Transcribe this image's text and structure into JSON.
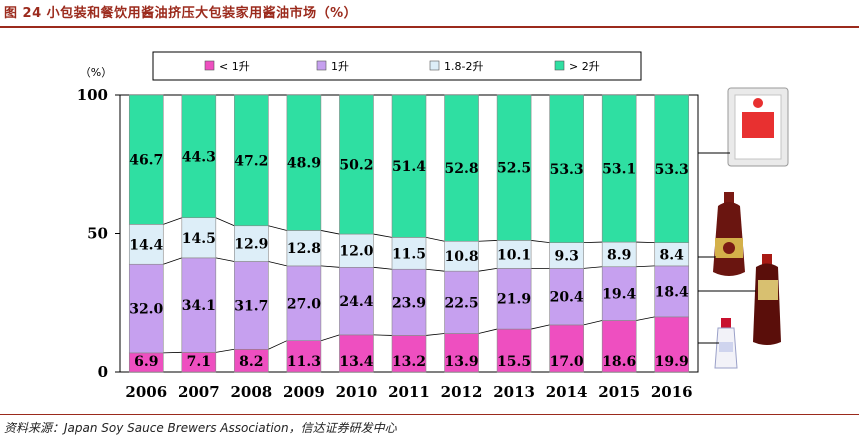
{
  "figure": {
    "title": "图 24 小包装和餐饮用酱油挤压大包装家用酱油市场（%）",
    "source": "资料来源：Japan Soy Sauce Brewers Association，信达证券研发中心"
  },
  "chart_data": {
    "type": "bar",
    "stacked": true,
    "ylabel": "（%）",
    "ylim": [
      0,
      100
    ],
    "yticks": [
      0,
      50,
      100
    ],
    "legend_position": "top",
    "grid": false,
    "categories": [
      "2006",
      "2007",
      "2008",
      "2009",
      "2010",
      "2011",
      "2012",
      "2013",
      "2014",
      "2015",
      "2016"
    ],
    "series": [
      {
        "name": "< 1升",
        "color": "#ee4fc0",
        "values": [
          6.9,
          7.1,
          8.2,
          11.3,
          13.4,
          13.2,
          13.9,
          15.5,
          17.0,
          18.6,
          19.9
        ],
        "labels": [
          "6.9",
          "7.1",
          "8.2",
          "11.3",
          "13.4",
          "13.2",
          "13.9",
          "15.5",
          "17.0",
          "18.6",
          "19.9"
        ]
      },
      {
        "name": "1升",
        "color": "#c6a0ef",
        "values": [
          32.0,
          34.1,
          31.7,
          27.0,
          24.4,
          23.9,
          22.5,
          21.9,
          20.4,
          19.4,
          18.4
        ],
        "labels": [
          "32.0",
          "34.1",
          "31.7",
          "27.0",
          "24.4",
          "23.9",
          "22.5",
          "21.9",
          "20.4",
          "19.4",
          "18.4"
        ]
      },
      {
        "name": "1.8-2升",
        "color": "#ddeef8",
        "values": [
          14.4,
          14.5,
          12.9,
          12.8,
          12.0,
          11.5,
          10.8,
          10.1,
          9.3,
          8.9,
          8.4
        ],
        "labels": [
          "14.4",
          "14.5",
          "12.9",
          "12.8",
          "12.0",
          "11.5",
          "10.8",
          "10.1",
          "9.3",
          "8.9",
          "8.4"
        ]
      },
      {
        "name": "> 2升",
        "color": "#2fdfa2",
        "values": [
          46.7,
          44.3,
          47.2,
          48.9,
          50.2,
          51.4,
          52.8,
          52.5,
          53.3,
          53.1,
          53.3
        ],
        "labels": [
          "46.7",
          "44.3",
          "47.2",
          "48.9",
          "50.2",
          "51.4",
          "52.8",
          "52.5",
          "53.3",
          "53.1",
          "53.3"
        ]
      }
    ]
  }
}
